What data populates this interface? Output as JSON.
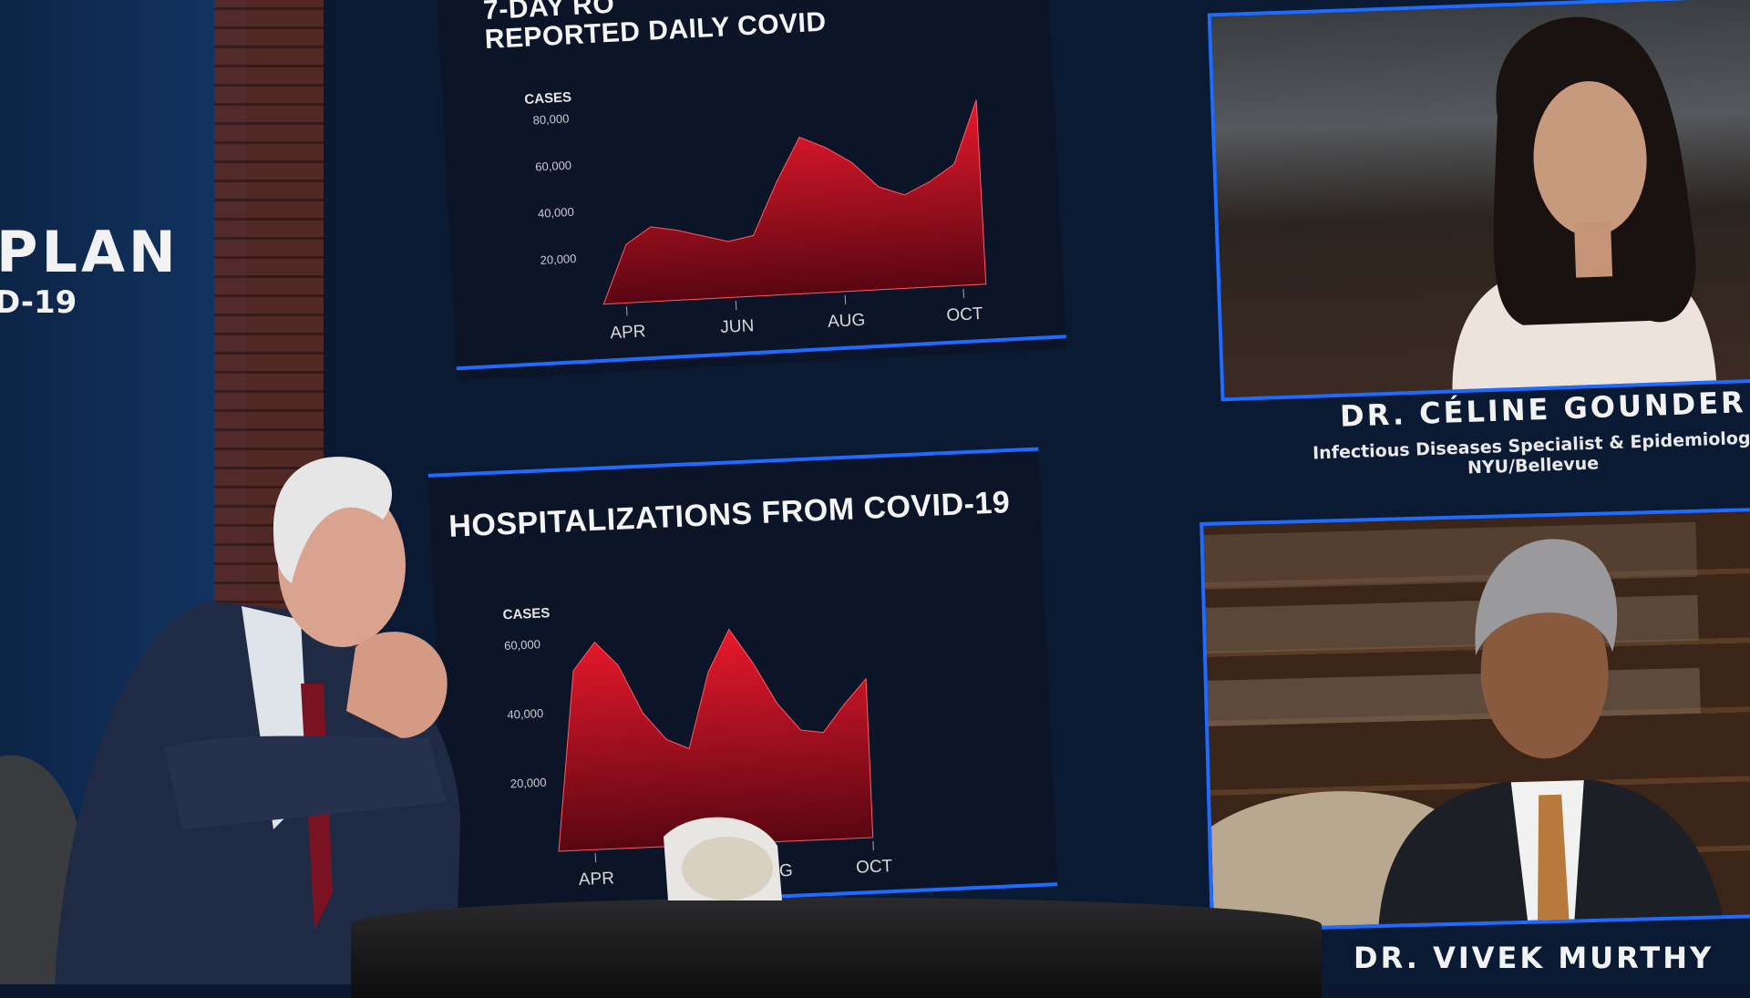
{
  "backdrop": {
    "line1": "PLAN",
    "line2": "D-19"
  },
  "chart_data": [
    {
      "type": "area",
      "title_line1": "7-DAY RO",
      "title_line2": "REPORTED DAILY COVID",
      "ylabel": "CASES",
      "yticks": [
        "80,000",
        "60,000",
        "40,000",
        "20,000"
      ],
      "ylim": [
        0,
        80000
      ],
      "xticks": [
        "APR",
        "JUN",
        "AUG",
        "OCT"
      ],
      "x": [
        "Mar",
        "Apr",
        "Apr",
        "May",
        "May",
        "Jun",
        "Jun",
        "Jul",
        "Jul",
        "Aug",
        "Aug",
        "Sep",
        "Sep",
        "Oct",
        "Oct",
        "Oct"
      ],
      "values": [
        0,
        25000,
        32000,
        30000,
        27000,
        24000,
        26000,
        48000,
        67000,
        62000,
        55000,
        44000,
        40000,
        45000,
        52000,
        79000
      ],
      "color": "#e8192c"
    },
    {
      "type": "area",
      "title": "HOSPITALIZATIONS FROM COVID-19",
      "ylabel": "CASES",
      "yticks": [
        "60,000",
        "40,000",
        "20,000"
      ],
      "ylim": [
        0,
        62000
      ],
      "xticks": [
        "APR",
        "AUG",
        "OCT"
      ],
      "x": [
        "Mar",
        "Apr",
        "Apr",
        "May",
        "May",
        "Jun",
        "Jun",
        "Jul",
        "Jul",
        "Aug",
        "Aug",
        "Sep",
        "Sep",
        "Oct",
        "Oct"
      ],
      "values": [
        0,
        52000,
        60000,
        53000,
        39000,
        31000,
        28000,
        50000,
        62000,
        52000,
        40000,
        32000,
        31000,
        39000,
        46000
      ],
      "color": "#e8192c"
    }
  ],
  "panel1": {
    "name": "DR. CÉLINE GOUNDER",
    "role": "Infectious Diseases Specialist & Epidemiologi",
    "org": "NYU/Bellevue"
  },
  "panel2": {
    "name": "DR. VIVEK MURTHY"
  },
  "colors": {
    "accent": "#1f6bff",
    "screen": "#0b1a33",
    "area": "#e8192c"
  }
}
